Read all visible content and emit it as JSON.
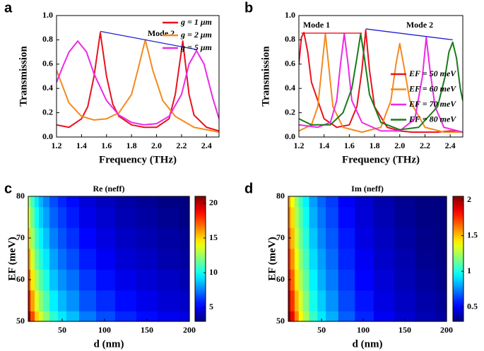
{
  "chart_data": [
    {
      "type": "line",
      "panel": "a",
      "xlabel": "Frequency (THz)",
      "ylabel": "Transmission",
      "xlim": [
        1.2,
        2.5
      ],
      "xticks": [
        1.2,
        1.4,
        1.6,
        1.8,
        {
          "value": 2.0,
          "label": "2.0"
        },
        2.2,
        2.4
      ],
      "ylim": [
        0,
        1
      ],
      "yticks": [
        {
          "value": 0,
          "label": "0.0"
        },
        0.2,
        0.4,
        0.6,
        0.8,
        {
          "value": 1,
          "label": "1.0"
        }
      ],
      "legend": "upper right",
      "series": [
        {
          "name": "g = 1 μm",
          "color": "#e8121e",
          "x": [
            1.2,
            1.3,
            1.4,
            1.45,
            1.5,
            1.55,
            1.6,
            1.65,
            1.7,
            1.8,
            1.9,
            2.0,
            2.1,
            2.15,
            2.21,
            2.26,
            2.3,
            2.4,
            2.5
          ],
          "values": [
            0.1,
            0.08,
            0.15,
            0.25,
            0.5,
            0.86,
            0.5,
            0.27,
            0.17,
            0.1,
            0.08,
            0.08,
            0.15,
            0.35,
            0.79,
            0.35,
            0.18,
            0.08,
            0.05
          ]
        },
        {
          "name": "g = 2 μm",
          "color": "#f5891f",
          "x": [
            1.2,
            1.3,
            1.4,
            1.5,
            1.6,
            1.7,
            1.8,
            1.85,
            1.91,
            1.97,
            2.05,
            2.15,
            2.3,
            2.5
          ],
          "values": [
            0.55,
            0.28,
            0.17,
            0.14,
            0.15,
            0.2,
            0.35,
            0.55,
            0.8,
            0.55,
            0.3,
            0.17,
            0.08,
            0.04
          ]
        },
        {
          "name": "g = 5 μm",
          "color": "#ee28e8",
          "x": [
            1.2,
            1.25,
            1.3,
            1.37,
            1.44,
            1.5,
            1.6,
            1.7,
            1.8,
            1.9,
            2.0,
            2.1,
            2.2,
            2.26,
            2.32,
            2.38,
            2.45,
            2.5
          ],
          "values": [
            0.45,
            0.58,
            0.7,
            0.79,
            0.7,
            0.52,
            0.3,
            0.18,
            0.12,
            0.1,
            0.11,
            0.17,
            0.35,
            0.6,
            0.71,
            0.6,
            0.32,
            0.15
          ]
        }
      ],
      "annotations": [
        {
          "text": "Mode 2"
        }
      ],
      "lines": [
        {
          "color": "#2020d0",
          "x": [
            1.55,
            2.32
          ],
          "y": [
            0.87,
            0.72
          ]
        }
      ]
    },
    {
      "type": "line",
      "panel": "b",
      "xlabel": "Frequency (THz)",
      "ylabel": "Transmission",
      "xlim": [
        1.2,
        2.5
      ],
      "xticks": [
        1.2,
        1.4,
        1.6,
        1.8,
        {
          "value": 2.0,
          "label": "2.0"
        },
        2.2,
        2.4
      ],
      "ylim": [
        0,
        1
      ],
      "yticks": [
        {
          "value": 0,
          "label": "0.0"
        },
        0.2,
        0.4,
        0.6,
        0.8,
        {
          "value": 1,
          "label": "1.0"
        }
      ],
      "legend": "center right",
      "series": [
        {
          "name": "EF = 50 meV",
          "color": "#e8121e",
          "x": [
            1.2,
            1.22,
            1.24,
            1.27,
            1.3,
            1.4,
            1.5,
            1.6,
            1.66,
            1.7,
            1.73,
            1.76,
            1.8,
            1.9,
            2.0,
            2.1,
            2.2,
            2.3,
            2.4,
            2.5
          ],
          "values": [
            0.6,
            0.82,
            0.86,
            0.7,
            0.45,
            0.15,
            0.08,
            0.1,
            0.25,
            0.55,
            0.88,
            0.55,
            0.25,
            0.08,
            0.05,
            0.04,
            0.04,
            0.04,
            0.05,
            0.04
          ]
        },
        {
          "name": "EF = 60 meV",
          "color": "#f5891f",
          "x": [
            1.2,
            1.3,
            1.35,
            1.38,
            1.41,
            1.44,
            1.47,
            1.55,
            1.7,
            1.85,
            1.93,
            1.97,
            2.0,
            2.03,
            2.08,
            2.2,
            2.35,
            2.5
          ],
          "values": [
            0.05,
            0.1,
            0.25,
            0.55,
            0.85,
            0.55,
            0.25,
            0.08,
            0.04,
            0.08,
            0.3,
            0.6,
            0.77,
            0.6,
            0.3,
            0.08,
            0.04,
            0.04
          ]
        },
        {
          "name": "EF = 70 meV",
          "color": "#ee28e8",
          "x": [
            1.2,
            1.35,
            1.45,
            1.5,
            1.53,
            1.56,
            1.59,
            1.62,
            1.7,
            1.85,
            2.0,
            2.12,
            2.18,
            2.21,
            2.24,
            2.28,
            2.35,
            2.5
          ],
          "values": [
            0.1,
            0.08,
            0.12,
            0.3,
            0.6,
            0.85,
            0.6,
            0.3,
            0.12,
            0.05,
            0.05,
            0.15,
            0.5,
            0.82,
            0.55,
            0.25,
            0.08,
            0.04
          ]
        },
        {
          "name": "EF = 80 meV",
          "color": "#1a7a1a",
          "x": [
            1.2,
            1.3,
            1.45,
            1.55,
            1.62,
            1.66,
            1.69,
            1.72,
            1.76,
            1.85,
            2.0,
            2.15,
            2.3,
            2.36,
            2.39,
            2.42,
            2.45,
            2.48,
            2.5
          ],
          "values": [
            0.15,
            0.1,
            0.1,
            0.2,
            0.4,
            0.65,
            0.85,
            0.65,
            0.35,
            0.12,
            0.06,
            0.08,
            0.25,
            0.5,
            0.7,
            0.78,
            0.65,
            0.4,
            0.3
          ]
        }
      ],
      "annotations": [
        {
          "text": "Mode 1"
        },
        {
          "text": "Mode 2"
        }
      ],
      "lines": [
        {
          "color": "#e8121e",
          "x": [
            1.22,
            1.7
          ],
          "y": [
            0.855,
            0.855
          ]
        },
        {
          "color": "#2020d0",
          "x": [
            1.73,
            2.42
          ],
          "y": [
            0.89,
            0.8
          ]
        }
      ]
    },
    {
      "type": "heatmap",
      "panel": "c",
      "title": "Re (neff)",
      "xlabel": "d (nm)",
      "ylabel": "EF (meV)",
      "xlim": [
        10,
        200
      ],
      "xticks": [
        50,
        100,
        150,
        200
      ],
      "ylim": [
        50,
        80
      ],
      "yticks": [
        50,
        60,
        70,
        80
      ],
      "zlim": [
        3,
        21
      ],
      "zticks": [
        5,
        10,
        15,
        20
      ],
      "x": [
        10,
        15,
        20,
        25,
        30,
        40,
        50,
        60,
        80,
        100,
        125,
        150,
        175,
        200
      ],
      "y": [
        50,
        55,
        60,
        65,
        70,
        75,
        80
      ],
      "z": [
        [
          21,
          17.5,
          15,
          13.4,
          12.2,
          10.5,
          9.4,
          8.6,
          7.4,
          6.6,
          5.9,
          5.4,
          5.0,
          4.7
        ],
        [
          19.1,
          15.9,
          13.6,
          12.2,
          11.1,
          9.5,
          8.5,
          7.8,
          6.7,
          6.0,
          5.4,
          4.9,
          4.5,
          4.3
        ],
        [
          17.5,
          14.6,
          12.5,
          11.2,
          10.2,
          8.7,
          7.8,
          7.2,
          6.2,
          5.5,
          4.9,
          4.5,
          4.2,
          3.9
        ],
        [
          16.2,
          13.5,
          11.5,
          10.3,
          9.4,
          8.1,
          7.2,
          6.6,
          5.7,
          5.1,
          4.5,
          4.2,
          3.8,
          3.6
        ],
        [
          15.0,
          12.5,
          10.7,
          9.6,
          8.7,
          7.5,
          6.7,
          6.1,
          5.3,
          4.7,
          4.2,
          3.9,
          3.6,
          3.4
        ],
        [
          14.0,
          11.7,
          10.0,
          8.9,
          8.1,
          7.0,
          6.3,
          5.7,
          4.9,
          4.4,
          3.9,
          3.6,
          3.3,
          3.1
        ],
        [
          13.1,
          10.9,
          9.4,
          8.4,
          7.6,
          6.6,
          5.9,
          5.4,
          4.6,
          4.1,
          3.7,
          3.4,
          3.1,
          2.9
        ]
      ]
    },
    {
      "type": "heatmap",
      "panel": "d",
      "title": "Im (neff)",
      "xlabel": "d (nm)",
      "ylabel": "EF (meV)",
      "xlim": [
        10,
        200
      ],
      "xticks": [
        50,
        100,
        150,
        200
      ],
      "ylim": [
        50,
        80
      ],
      "yticks": [
        50,
        60,
        70,
        80
      ],
      "zlim": [
        0.3,
        2.05
      ],
      "zticks": [
        0.5,
        1,
        1.5,
        2
      ],
      "x": [
        10,
        15,
        20,
        25,
        30,
        40,
        50,
        60,
        80,
        100,
        125,
        150,
        175,
        200
      ],
      "y": [
        50,
        55,
        60,
        65,
        70,
        75,
        80
      ],
      "z": [
        [
          2.1,
          1.85,
          1.6,
          1.4,
          1.25,
          1.05,
          0.92,
          0.82,
          0.68,
          0.58,
          0.5,
          0.44,
          0.39,
          0.36
        ],
        [
          1.98,
          1.75,
          1.51,
          1.32,
          1.18,
          0.99,
          0.87,
          0.77,
          0.64,
          0.55,
          0.47,
          0.42,
          0.37,
          0.34
        ],
        [
          1.88,
          1.66,
          1.43,
          1.25,
          1.12,
          0.94,
          0.82,
          0.73,
          0.61,
          0.52,
          0.45,
          0.39,
          0.35,
          0.32
        ],
        [
          1.79,
          1.58,
          1.37,
          1.2,
          1.07,
          0.9,
          0.79,
          0.7,
          0.58,
          0.5,
          0.43,
          0.38,
          0.33,
          0.31
        ],
        [
          1.72,
          1.51,
          1.31,
          1.14,
          1.02,
          0.86,
          0.75,
          0.67,
          0.56,
          0.47,
          0.41,
          0.36,
          0.32,
          0.29
        ],
        [
          1.65,
          1.45,
          1.25,
          1.1,
          0.98,
          0.82,
          0.72,
          0.64,
          0.53,
          0.45,
          0.39,
          0.34,
          0.31,
          0.28
        ],
        [
          1.58,
          1.39,
          1.21,
          1.06,
          0.94,
          0.79,
          0.69,
          0.62,
          0.51,
          0.44,
          0.38,
          0.33,
          0.29,
          0.27
        ]
      ]
    }
  ]
}
